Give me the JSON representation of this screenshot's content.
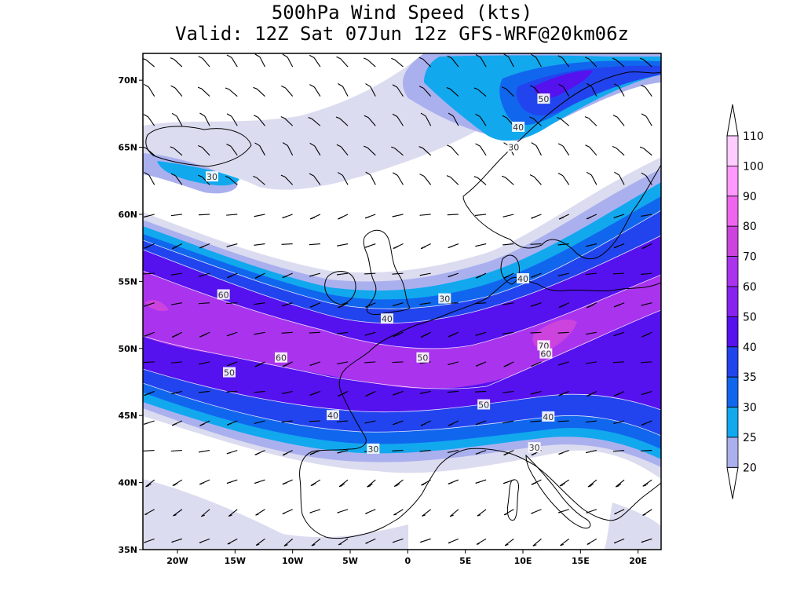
{
  "title": {
    "line1": "500hPa Wind Speed (kts)",
    "line2": "Valid: 12Z Sat 07Jun 12z GFS-WRF@20km06z"
  },
  "axes": {
    "lat_labels": [
      "70N",
      "65N",
      "60N",
      "55N",
      "50N",
      "45N",
      "40N",
      "35N"
    ],
    "lon_labels": [
      "20W",
      "15W",
      "10W",
      "5W",
      "0",
      "5E",
      "10E",
      "15E",
      "20E"
    ],
    "lon_range": [
      -23,
      22
    ],
    "lat_range": [
      35,
      72
    ]
  },
  "colorbar": {
    "levels": [
      "110",
      "100",
      "90",
      "80",
      "70",
      "60",
      "50",
      "40",
      "35",
      "30",
      "25",
      "20"
    ],
    "colors": [
      "#ffccff",
      "#ff99ff",
      "#ee66ee",
      "#cc44dd",
      "#aa33ee",
      "#8822ee",
      "#5511ee",
      "#2244ee",
      "#1166ee",
      "#11a8ee",
      "#aab0ee",
      "#dcdcf0"
    ]
  },
  "contour_labels": [
    {
      "text": "30",
      "lon": -17,
      "lat": 62.8
    },
    {
      "text": "50",
      "lon": 11.8,
      "lat": 68.6
    },
    {
      "text": "40",
      "lon": 9.6,
      "lat": 66.5
    },
    {
      "text": "30",
      "lon": 9.2,
      "lat": 65.0
    },
    {
      "text": "60",
      "lon": -16,
      "lat": 54.0
    },
    {
      "text": "40",
      "lon": -1.8,
      "lat": 52.2
    },
    {
      "text": "30",
      "lon": 3.2,
      "lat": 53.7
    },
    {
      "text": "40",
      "lon": 10.0,
      "lat": 55.2
    },
    {
      "text": "60",
      "lon": -11.0,
      "lat": 49.3
    },
    {
      "text": "50",
      "lon": 1.3,
      "lat": 49.3
    },
    {
      "text": "70",
      "lon": 11.8,
      "lat": 50.2
    },
    {
      "text": "60",
      "lon": 12.0,
      "lat": 49.6
    },
    {
      "text": "50",
      "lon": -15.5,
      "lat": 48.2
    },
    {
      "text": "50",
      "lon": 6.6,
      "lat": 45.8
    },
    {
      "text": "40",
      "lon": -6.5,
      "lat": 45.0
    },
    {
      "text": "40",
      "lon": 12.2,
      "lat": 44.9
    },
    {
      "text": "30",
      "lon": -3.0,
      "lat": 42.5
    },
    {
      "text": "30",
      "lon": 11.0,
      "lat": 42.6
    }
  ]
}
